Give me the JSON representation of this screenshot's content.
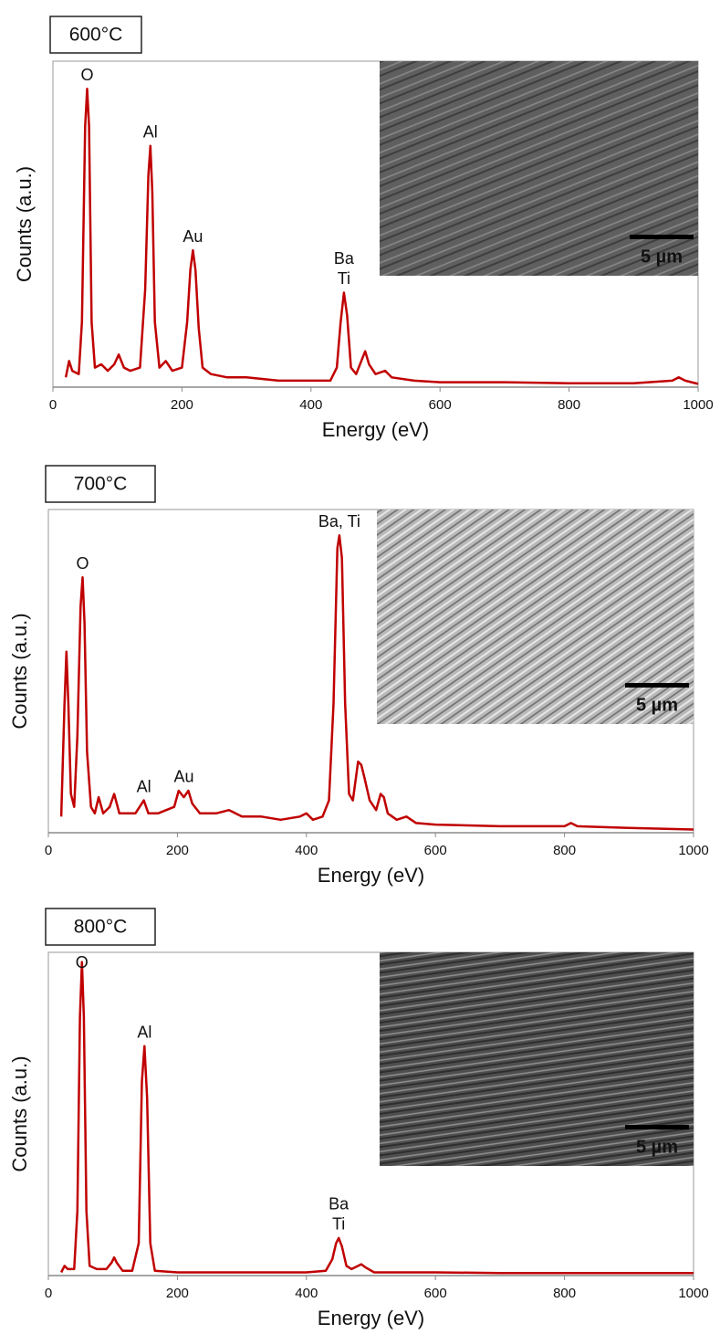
{
  "chart_data": [
    {
      "type": "line",
      "label": "600°C",
      "xlabel": "Energy (eV)",
      "ylabel": "Counts (a.u.)",
      "xlim": [
        0,
        1000
      ],
      "xticks": [
        0,
        200,
        400,
        600,
        800,
        1000
      ],
      "ylim": [
        0,
        100
      ],
      "x": [
        20,
        25,
        30,
        40,
        45,
        50,
        53,
        56,
        60,
        65,
        75,
        85,
        95,
        102,
        110,
        120,
        135,
        143,
        148,
        151,
        154,
        158,
        165,
        175,
        185,
        200,
        208,
        213,
        217,
        221,
        226,
        232,
        245,
        270,
        300,
        350,
        400,
        430,
        440,
        446,
        451,
        456,
        462,
        470,
        478,
        484,
        490,
        500,
        515,
        525,
        560,
        600,
        700,
        800,
        900,
        960,
        970,
        980,
        1000
      ],
      "series": [
        {
          "color": "#c00000",
          "values": [
            3,
            8,
            5,
            4,
            20,
            80,
            91.5,
            80,
            20,
            6,
            7,
            5,
            7,
            10,
            6,
            5,
            6,
            30,
            65,
            74,
            60,
            20,
            6,
            8,
            5,
            6,
            20,
            36,
            42,
            36,
            18,
            6,
            4,
            3,
            3,
            2,
            2,
            2,
            6,
            20,
            29,
            22,
            6,
            4,
            8,
            11,
            7,
            4,
            5,
            3,
            2,
            1.5,
            1.5,
            1.2,
            1.2,
            2,
            3,
            2,
            1
          ]
        }
      ],
      "annotations": [
        {
          "text": [
            "O"
          ],
          "x": 53
        },
        {
          "text": [
            "Al"
          ],
          "x": 151
        },
        {
          "text": [
            "Au"
          ],
          "x": 217
        },
        {
          "text": [
            "Ba",
            "Ti"
          ],
          "x": 451
        }
      ],
      "inset": {
        "scale_bar": "5 µm"
      }
    },
    {
      "type": "line",
      "label": "700°C",
      "xlabel": "Energy (eV)",
      "ylabel": "Counts (a.u.)",
      "xlim": [
        0,
        1000
      ],
      "xticks": [
        0,
        200,
        400,
        600,
        800,
        1000
      ],
      "ylim": [
        0,
        100
      ],
      "x": [
        20,
        25,
        28,
        31,
        35,
        40,
        45,
        50,
        53,
        56,
        60,
        66,
        72,
        78,
        85,
        95,
        102,
        110,
        120,
        135,
        148,
        155,
        170,
        195,
        202,
        210,
        217,
        223,
        235,
        260,
        280,
        300,
        330,
        360,
        390,
        400,
        410,
        425,
        435,
        442,
        448,
        451,
        455,
        460,
        466,
        472,
        480,
        485,
        490,
        498,
        508,
        515,
        520,
        526,
        540,
        555,
        570,
        600,
        700,
        800,
        810,
        820,
        900,
        1000
      ],
      "series": [
        {
          "color": "#c00000",
          "values": [
            5,
            40,
            56,
            40,
            12,
            8,
            30,
            70,
            79,
            65,
            25,
            8,
            6,
            11,
            6,
            8,
            12,
            6,
            6,
            6,
            10,
            6,
            6,
            8,
            13,
            11,
            13,
            9,
            6,
            6,
            7,
            5,
            5,
            4,
            5,
            6,
            4,
            5,
            10,
            40,
            88,
            92,
            85,
            40,
            12,
            10,
            22,
            21,
            17,
            10,
            7,
            12,
            11,
            6,
            4,
            5,
            3,
            2.5,
            2,
            2,
            3,
            2,
            1.5,
            1
          ]
        }
      ],
      "annotations": [
        {
          "text": [
            "O"
          ],
          "x": 53
        },
        {
          "text": [
            "Al"
          ],
          "x": 148
        },
        {
          "text": [
            "Au"
          ],
          "x": 210
        },
        {
          "text": [
            "Ba, Ti"
          ],
          "x": 451
        }
      ],
      "inset": {
        "scale_bar": "5 µm"
      }
    },
    {
      "type": "line",
      "label": "800°C",
      "xlabel": "Energy (eV)",
      "ylabel": "Counts (a.u.)",
      "xlim": [
        0,
        1000
      ],
      "xticks": [
        0,
        200,
        400,
        600,
        800,
        1000
      ],
      "ylim": [
        0,
        100
      ],
      "x": [
        20,
        25,
        30,
        40,
        45,
        49,
        52,
        55,
        59,
        64,
        75,
        90,
        98,
        102,
        106,
        115,
        130,
        140,
        145,
        149,
        153,
        158,
        165,
        200,
        300,
        400,
        430,
        440,
        446,
        450,
        455,
        462,
        470,
        480,
        485,
        492,
        505,
        600,
        700,
        800,
        900,
        1000
      ],
      "series": [
        {
          "color": "#c00000",
          "values": [
            1,
            3,
            2,
            2,
            20,
            80,
            97,
            80,
            20,
            3,
            2,
            2,
            4,
            5.6,
            4,
            1.5,
            1.5,
            10,
            60,
            71,
            55,
            10,
            1.5,
            1,
            1,
            1,
            1.5,
            5,
            10,
            11.6,
            9,
            3,
            2,
            3,
            3.5,
            2.5,
            1,
            1,
            0.8,
            0.8,
            0.8,
            0.8
          ]
        }
      ],
      "annotations": [
        {
          "text": [
            "O"
          ],
          "x": 52
        },
        {
          "text": [
            "Al"
          ],
          "x": 149
        },
        {
          "text": [
            "Ba",
            "Ti"
          ],
          "x": 450
        }
      ],
      "inset": {
        "scale_bar": "5 µm"
      }
    }
  ]
}
